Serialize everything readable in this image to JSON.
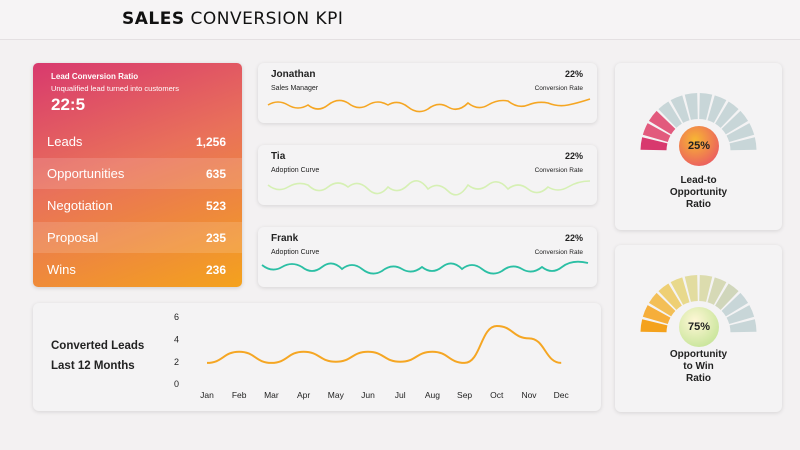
{
  "header": {
    "title_bold": "SALES",
    "title_rest": " CONVERSION KPI"
  },
  "funnel": {
    "title": "Lead Conversion Ratio",
    "subtitle": "Unqualified lead turned into customers",
    "ratio": "22:5",
    "rows": [
      {
        "label": "Leads",
        "value": "1,256"
      },
      {
        "label": "Opportunities",
        "value": "635"
      },
      {
        "label": "Negotiation",
        "value": "523"
      },
      {
        "label": "Proposal",
        "value": "235"
      },
      {
        "label": "Wins",
        "value": "236"
      }
    ]
  },
  "people": [
    {
      "name": "Jonathan",
      "role": "Sales Manager",
      "percent": "22%",
      "rate_label": "Conversion Rate",
      "color": "#f5a623"
    },
    {
      "name": "Tia",
      "role": "Adoption Curve",
      "percent": "22%",
      "rate_label": "Conversion Rate",
      "color": "#d6f0b4"
    },
    {
      "name": "Frank",
      "role": "Adoption Curve",
      "percent": "22%",
      "rate_label": "Conversion Rate",
      "color": "#2bbfa4"
    }
  ],
  "converted": {
    "title_line1": "Converted Leads",
    "title_line2": "Last 12 Months"
  },
  "chart_data": {
    "type": "line",
    "categories": [
      "Jan",
      "Feb",
      "Mar",
      "Apr",
      "May",
      "Jun",
      "Jul",
      "Aug",
      "Sep",
      "Oct",
      "Nov",
      "Dec"
    ],
    "values": [
      1.8,
      2.8,
      1.8,
      2.8,
      1.9,
      2.8,
      1.9,
      2.8,
      1.8,
      5.1,
      4.0,
      1.8
    ],
    "yticks": [
      "6",
      "4",
      "2",
      "0"
    ],
    "ylim": [
      0,
      6
    ],
    "color": "#f5a623",
    "grid": false
  },
  "gauges": [
    {
      "value": "25%",
      "label_lines": [
        "Lead-to",
        "Opportunity",
        "Ratio"
      ],
      "fraction": 0.25
    },
    {
      "value": "75%",
      "label_lines": [
        "Opportunity",
        "to Win",
        "Ratio"
      ],
      "fraction": 0.75
    }
  ]
}
